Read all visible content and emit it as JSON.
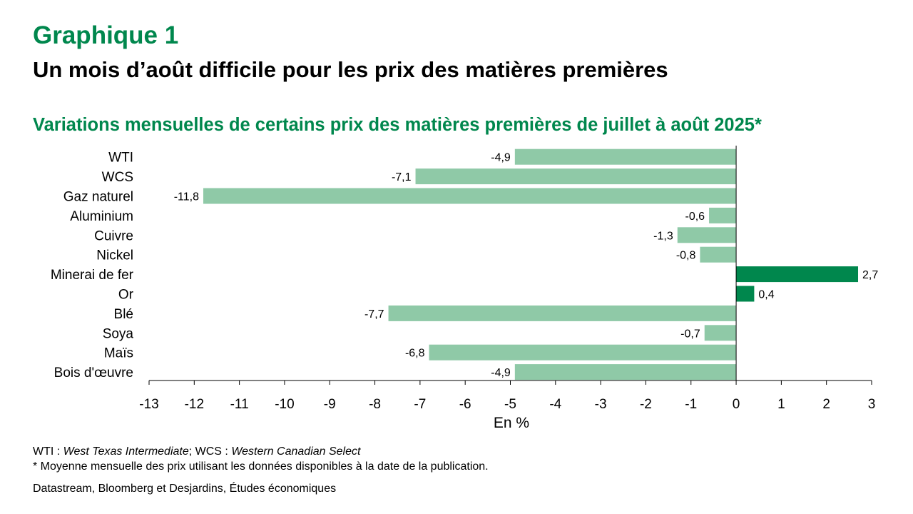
{
  "header": {
    "figure_label": "Graphique 1",
    "title": "Un mois d’août difficile pour les prix des matières premières"
  },
  "chart_data": {
    "type": "bar",
    "orientation": "horizontal",
    "subtitle": "Variations mensuelles de certains prix des matières premières de juillet à août 2025*",
    "categories": [
      "WTI",
      "WCS",
      "Gaz naturel",
      "Aluminium",
      "Cuivre",
      "Nickel",
      "Minerai de fer",
      "Or",
      "Blé",
      "Soya",
      "Maïs",
      "Bois d'œuvre"
    ],
    "values": [
      -4.9,
      -7.1,
      -11.8,
      -0.6,
      -1.3,
      -0.8,
      2.7,
      0.4,
      -7.7,
      -0.7,
      -6.8,
      -4.9
    ],
    "data_labels": [
      "-4,9",
      "-7,1",
      "-11,8",
      "-0,6",
      "-1,3",
      "-0,8",
      "2,7",
      "0,4",
      "-7,7",
      "-0,7",
      "-6,8",
      "-4,9"
    ],
    "xlabel": "En %",
    "xlim": [
      -13,
      3
    ],
    "xticks": [
      "-13",
      "-12",
      "-11",
      "-10",
      "-9",
      "-8",
      "-7",
      "-6",
      "-5",
      "-4",
      "-3",
      "-2",
      "-1",
      "0",
      "1",
      "2",
      "3"
    ],
    "grid": false,
    "colors": {
      "negative": "#8FC9A7",
      "positive": "#00874D"
    }
  },
  "footer": {
    "abbr_wti": "WTI : ",
    "abbr_wti_full": "West Texas Intermediate",
    "abbr_sep": "; WCS : ",
    "abbr_wcs_full": "Western Canadian Select",
    "note": "* Moyenne mensuelle des prix utilisant les données disponibles à la date de la publication.",
    "source": "Datastream, Bloomberg et Desjardins, Études économiques"
  }
}
